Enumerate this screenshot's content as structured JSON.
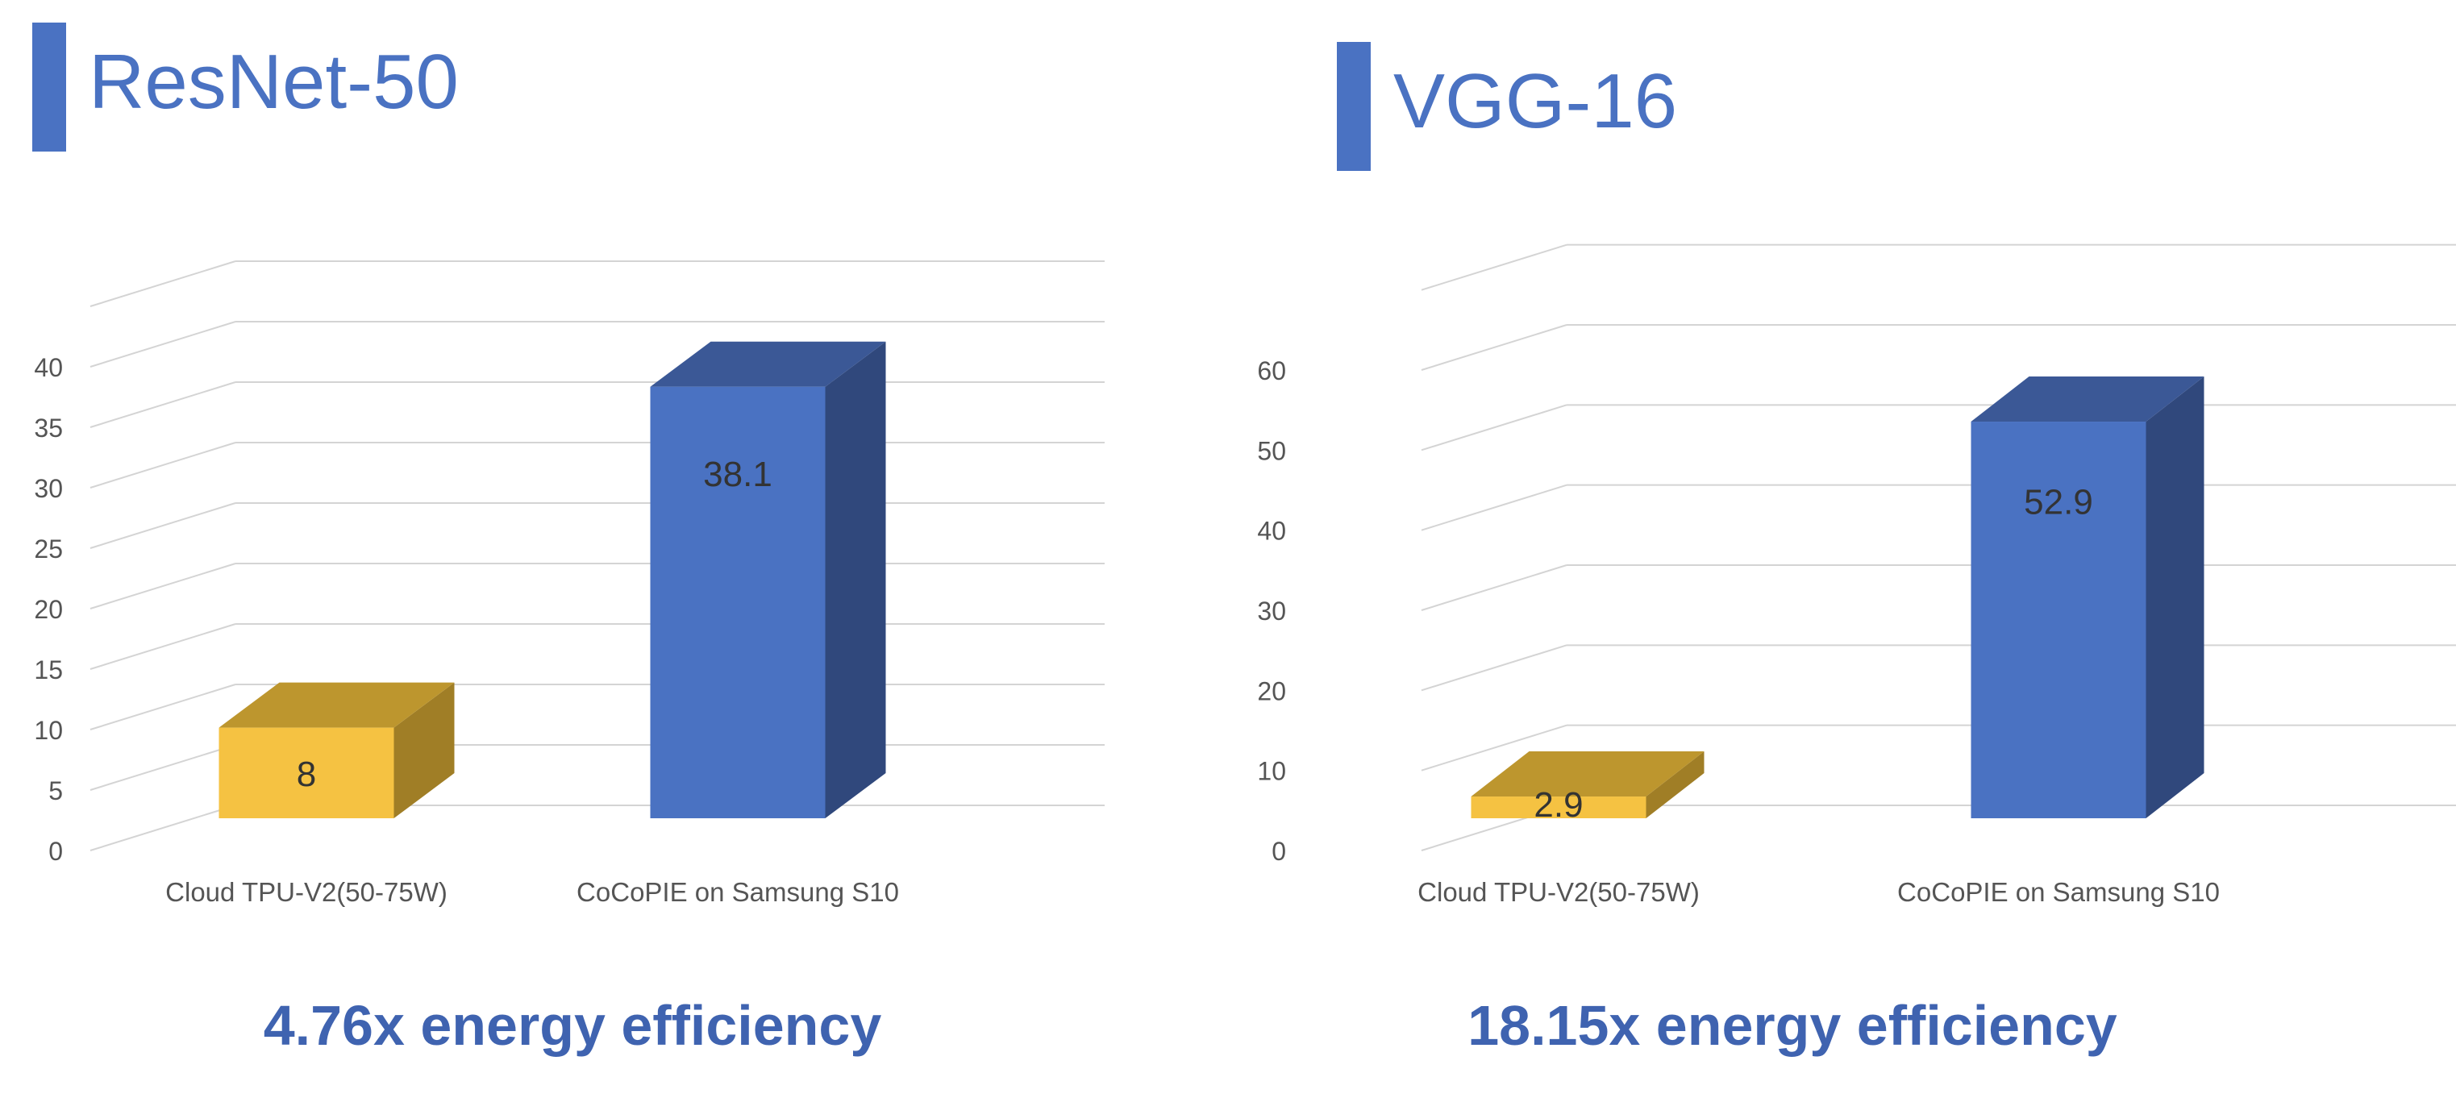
{
  "colors": {
    "accent": "#4A72C2",
    "caption": "#3F63B0",
    "tpu_front": "#F5C242",
    "tpu_top": "#BD962E",
    "tpu_side": "#A07E26",
    "cocopie_front": "#4A72C2",
    "cocopie_top": "#3B5896",
    "cocopie_side": "#30487C",
    "grid": "#D4D4D4",
    "tick_text": "#555555",
    "label_text": "#333333"
  },
  "panels": [
    {
      "title": "ResNet-50",
      "caption": "4.76x energy efficiency"
    },
    {
      "title": "VGG-16",
      "caption": "18.15x energy efficiency"
    }
  ],
  "chart_data": [
    {
      "type": "bar",
      "title": "ResNet-50",
      "xlabel": "",
      "ylabel": "",
      "categories": [
        "Cloud TPU-V2(50-75W)",
        "CoCoPIE on Samsung S10"
      ],
      "values": [
        8,
        38.1
      ],
      "data_labels": [
        "8",
        "38.1"
      ],
      "ylim": [
        0,
        40
      ],
      "yticks": [
        0,
        5,
        10,
        15,
        20,
        25,
        30,
        35,
        40
      ],
      "grid": true,
      "style": "3d"
    },
    {
      "type": "bar",
      "title": "VGG-16",
      "xlabel": "",
      "ylabel": "",
      "categories": [
        "Cloud TPU-V2(50-75W)",
        "CoCoPIE on Samsung S10"
      ],
      "values": [
        2.9,
        52.9
      ],
      "data_labels": [
        "2.9",
        "52.9"
      ],
      "ylim": [
        0,
        60
      ],
      "yticks": [
        0,
        10,
        20,
        30,
        40,
        50,
        60
      ],
      "grid": true,
      "style": "3d"
    }
  ]
}
